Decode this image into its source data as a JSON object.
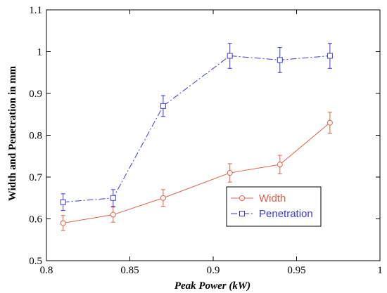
{
  "chart_data": {
    "type": "line",
    "title": "",
    "xlabel": "Peak Power (kW)",
    "ylabel": "Width and Penetration in mm",
    "xlim": [
      0.8,
      1.0
    ],
    "ylim": [
      0.5,
      1.1
    ],
    "x_ticks": [
      "0.8",
      "0.85",
      "0.9",
      "0.95",
      "1"
    ],
    "y_ticks": [
      "0.5",
      "0.6",
      "0.7",
      "0.8",
      "0.9",
      "1",
      "1.1"
    ],
    "grid": false,
    "legend_position": "lower-right",
    "series": [
      {
        "name": "Width",
        "color": "#e06048",
        "marker": "circle",
        "line_style": "solid",
        "x": [
          0.81,
          0.84,
          0.87,
          0.91,
          0.94,
          0.97
        ],
        "y": [
          0.59,
          0.61,
          0.65,
          0.71,
          0.73,
          0.83
        ],
        "error": [
          0.018,
          0.018,
          0.02,
          0.022,
          0.022,
          0.025
        ]
      },
      {
        "name": "Penetration",
        "color": "#3a3adc",
        "marker": "square",
        "line_style": "dash-dot",
        "x": [
          0.81,
          0.84,
          0.87,
          0.91,
          0.94,
          0.97
        ],
        "y": [
          0.64,
          0.65,
          0.87,
          0.99,
          0.98,
          0.99
        ],
        "error": [
          0.02,
          0.02,
          0.025,
          0.03,
          0.03,
          0.03
        ]
      }
    ]
  }
}
